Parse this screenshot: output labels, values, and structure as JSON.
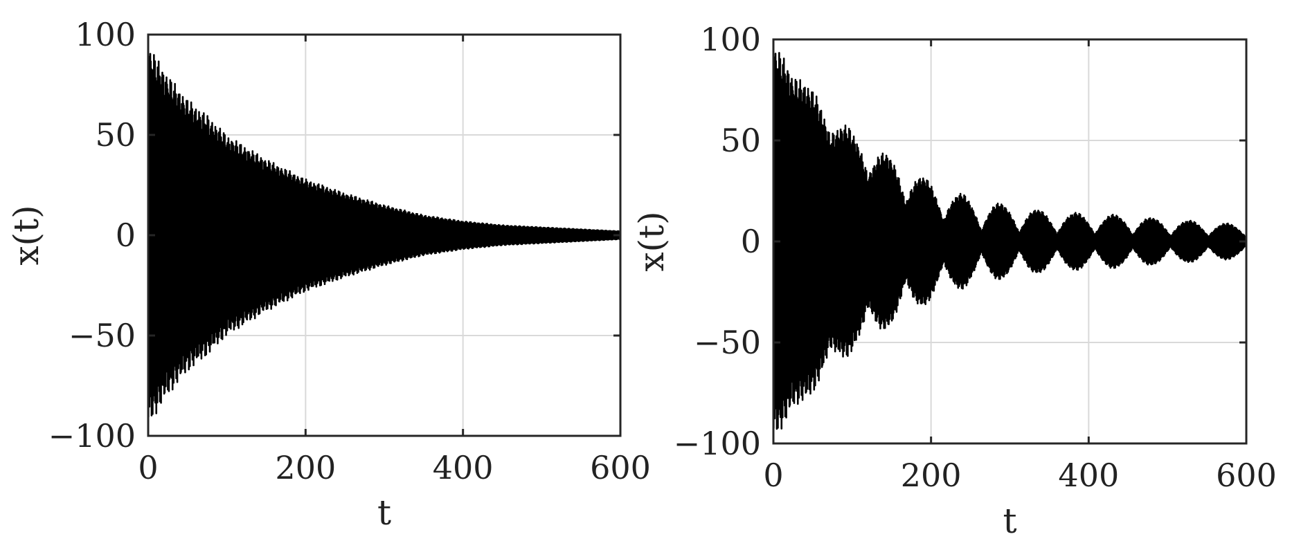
{
  "chart_data": [
    {
      "type": "line",
      "xlabel": "t",
      "ylabel": "x(t)",
      "xlim": [
        0,
        600
      ],
      "ylim": [
        -100,
        100
      ],
      "xticks": [
        0,
        200,
        400,
        600
      ],
      "yticks": [
        -100,
        -50,
        0,
        50,
        100
      ],
      "xtick_labels": [
        "0",
        "200",
        "400",
        "600"
      ],
      "ytick_labels": [
        "−100",
        "−50",
        "0",
        "50",
        "100"
      ],
      "grid": true,
      "line_color": "#000000",
      "series": [
        {
          "envelope": {
            "t": [
              0,
              25,
              50,
              75,
              100,
              150,
              200,
              250,
              300,
              350,
              400,
              450,
              500,
              550,
              600
            ],
            "amplitude": [
              95,
              80,
              68,
              60,
              50,
              38,
              28,
              21,
              15,
              10,
              7,
              5,
              4,
              3,
              2
            ]
          },
          "beat_period": 0
        }
      ]
    },
    {
      "type": "line",
      "xlabel": "t",
      "ylabel": "x(t)",
      "xlim": [
        0,
        600
      ],
      "ylim": [
        -100,
        100
      ],
      "xticks": [
        0,
        200,
        400,
        600
      ],
      "yticks": [
        -100,
        -50,
        0,
        50,
        100
      ],
      "xtick_labels": [
        "0",
        "200",
        "400",
        "600"
      ],
      "ytick_labels": [
        "−100",
        "−50",
        "0",
        "50",
        "100"
      ],
      "grid": true,
      "line_color": "#000000",
      "series": [
        {
          "envelope": {
            "t": [
              0,
              25,
              50,
              75,
              100,
              150,
              200,
              250,
              300,
              350,
              400,
              450,
              500,
              550,
              600
            ],
            "amplitude": [
              97,
              88,
              75,
              65,
              55,
              42,
              30,
              22,
              18,
              15,
              14,
              13,
              11,
              10,
              8
            ]
          },
          "beat_period": 48
        }
      ]
    }
  ]
}
